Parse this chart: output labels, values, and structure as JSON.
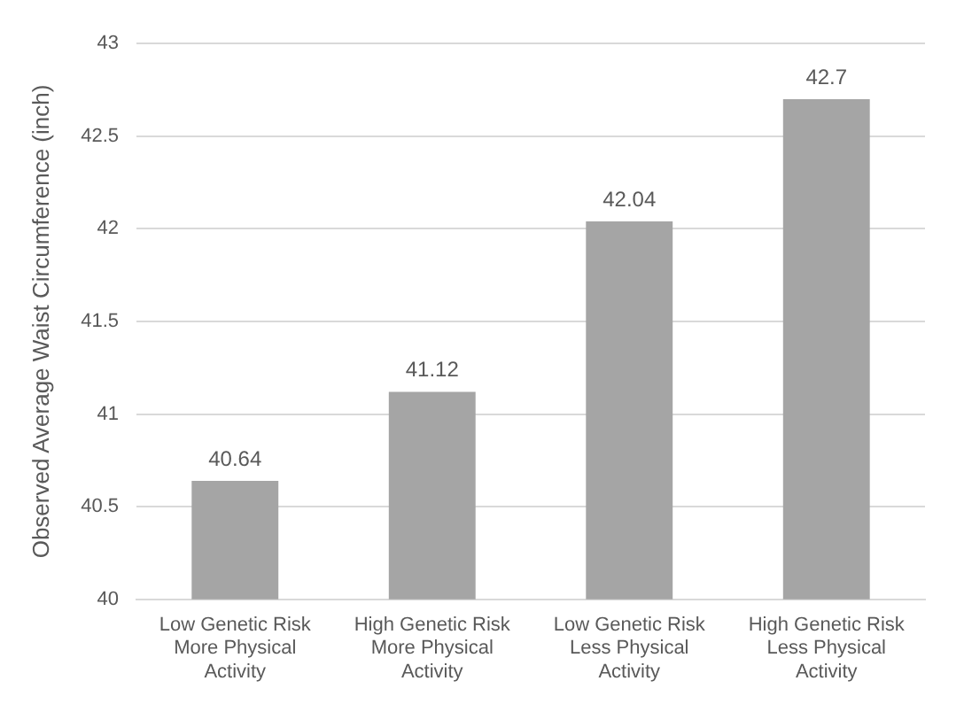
{
  "chart_data": {
    "type": "bar",
    "ylabel": "Observed Average Waist Circumference (inch)",
    "categories": [
      "Low Genetic Risk More Physical Activity",
      "High Genetic Risk More Physical Activity",
      "Low Genetic Risk Less Physical Activity",
      "High Genetic Risk Less Physical Activity"
    ],
    "values": [
      40.64,
      41.12,
      42.04,
      42.7
    ],
    "color": "#a5a5a5",
    "ylim": [
      40,
      43
    ],
    "yticks": [
      40,
      40.5,
      41,
      41.5,
      42,
      42.5,
      43
    ],
    "grid": "y",
    "data_labels": true,
    "legend": false
  }
}
